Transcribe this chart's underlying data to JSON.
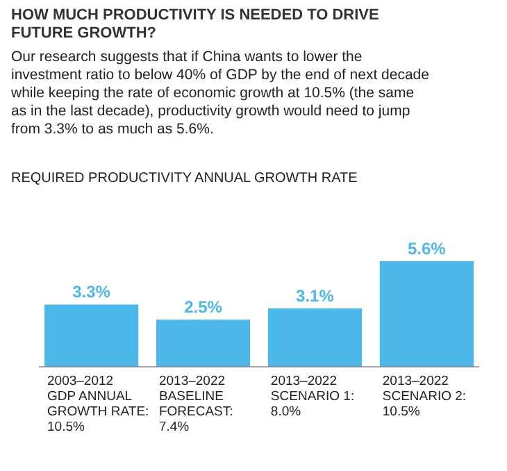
{
  "chart_data": {
    "type": "bar",
    "title": "HOW MUCH PRODUCTIVITY IS NEEDED TO DRIVE\nFUTURE GROWTH?",
    "subtitle": "Our research suggests that if China wants to lower the\ninvestment ratio to below 40% of GDP by the end of next decade\nwhile keeping the rate of economic growth at 10.5% (the same\nas in the last decade), productivity growth would need to jump\nfrom 3.3% to as much as 5.6%.",
    "annotations": [
      "REQUIRED PRODUCTIVITY ANNUAL GROWTH RATE"
    ],
    "categories": [
      "2003–2012\nGDP ANNUAL\nGROWTH RATE:\n10.5%",
      "2013–2022\nBASELINE\nFORECAST:\n7.4%",
      "2013–2022\nSCENARIO 1:\n8.0%",
      "2013–2022\nSCENARIO 2:\n10.5%"
    ],
    "values": [
      3.3,
      2.5,
      3.1,
      5.6
    ],
    "value_labels": [
      "3.3%",
      "2.5%",
      "3.1%",
      "5.6%"
    ],
    "color": "#4db8ea",
    "relative": false
  }
}
